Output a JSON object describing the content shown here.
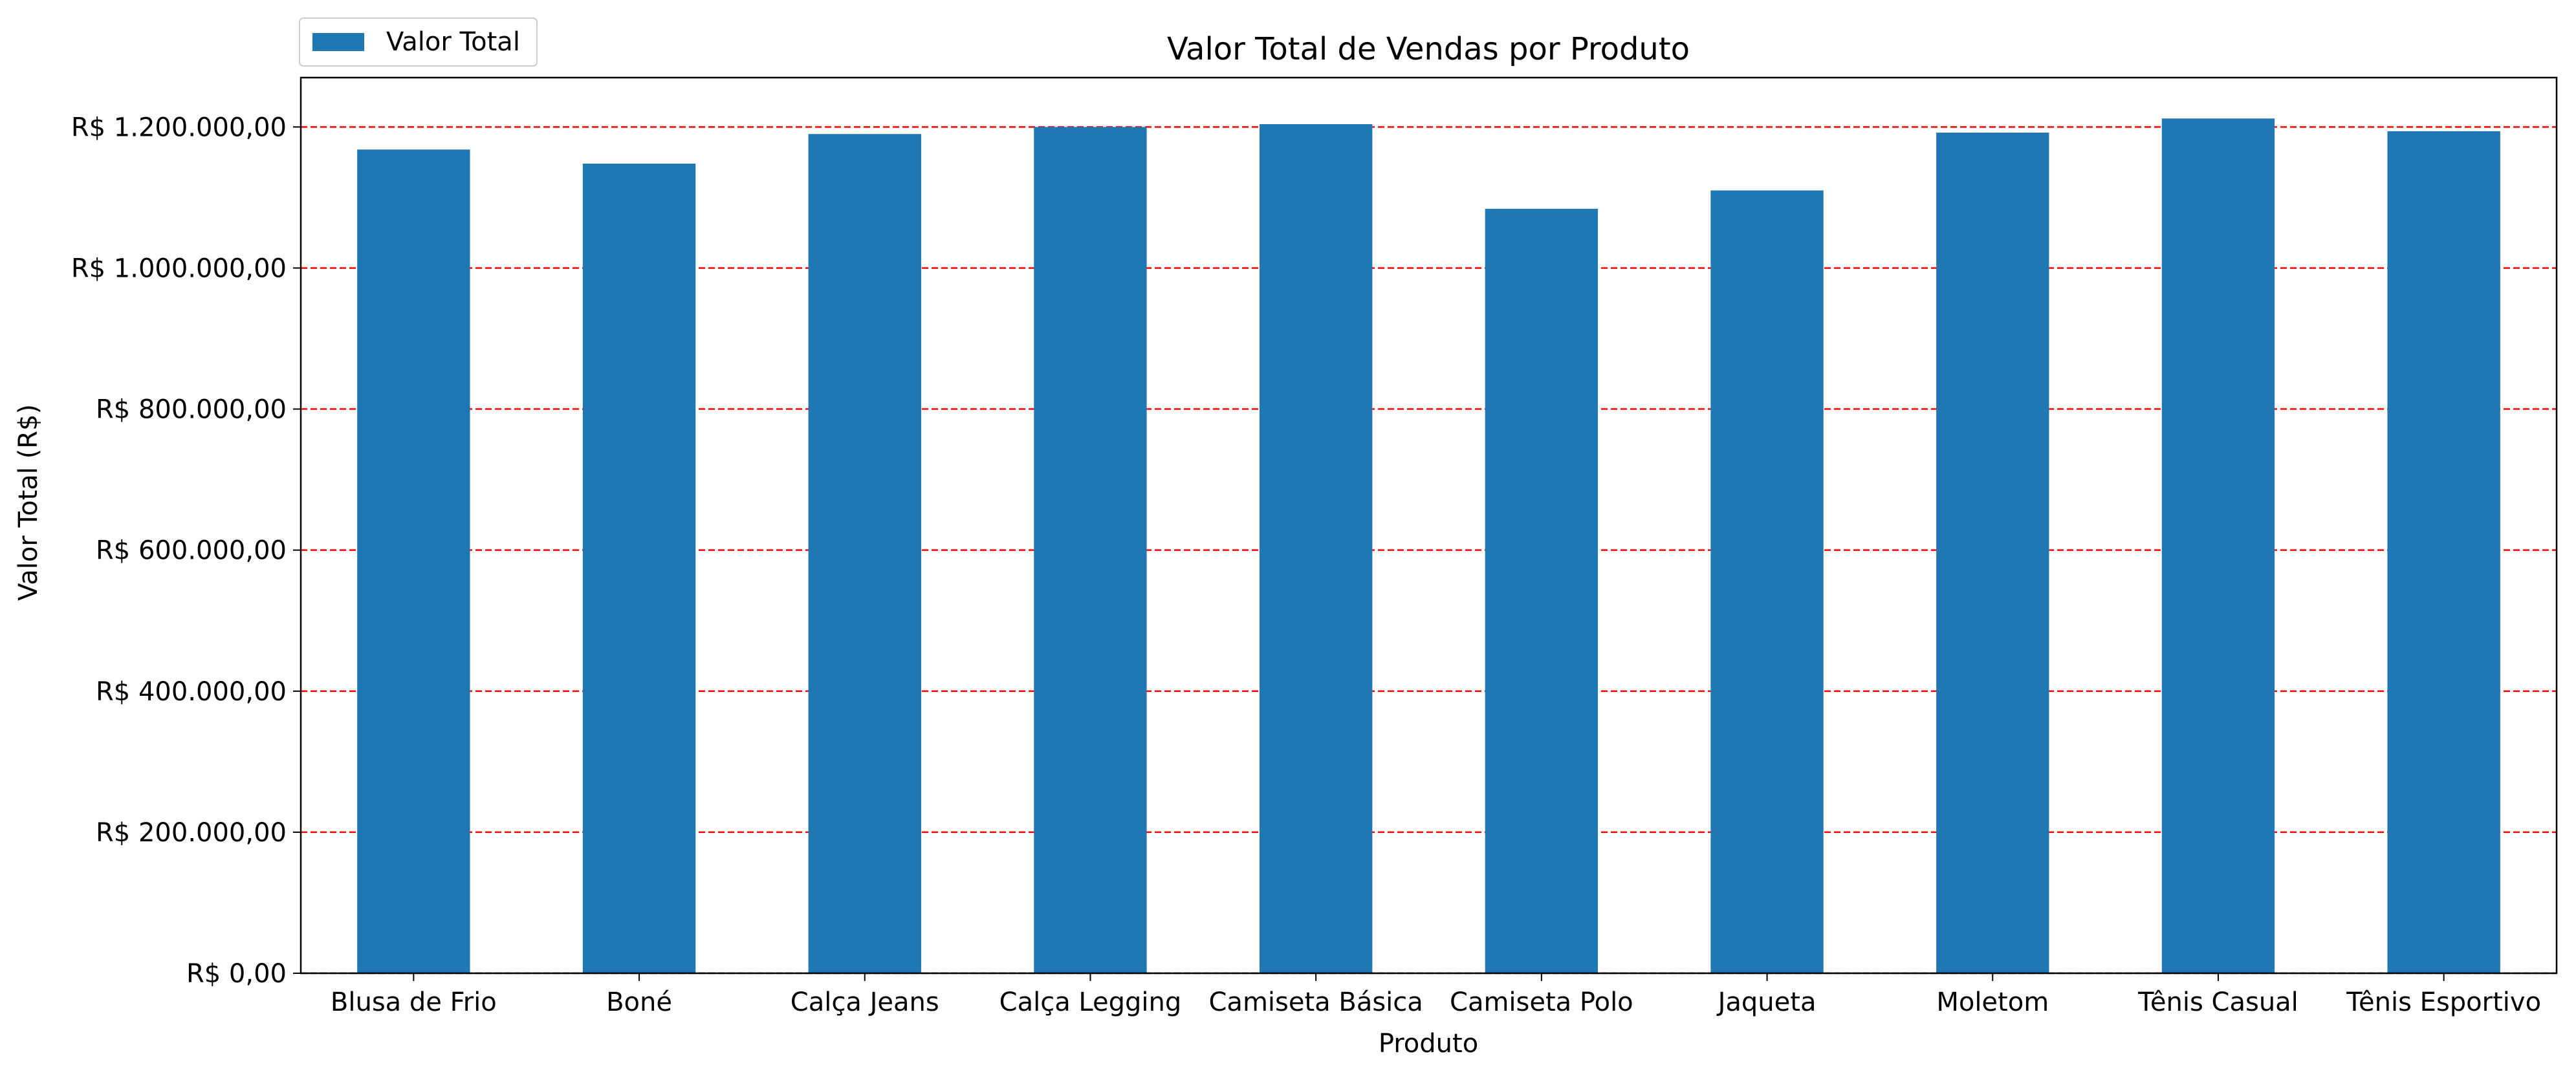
{
  "chart_data": {
    "type": "bar",
    "title": "Valor Total de Vendas por Produto",
    "xlabel": "Produto",
    "ylabel": "Valor Total (R$)",
    "categories": [
      "Blusa de Frio",
      "Boné",
      "Calça Jeans",
      "Calça Legging",
      "Camiseta Básica",
      "Camiseta Polo",
      "Jaqueta",
      "Moletom",
      "Tênis Casual",
      "Tênis Esportivo"
    ],
    "series": [
      {
        "name": "Valor Total",
        "color": "#1f77b4",
        "values": [
          1168000,
          1148000,
          1190000,
          1200000,
          1204000,
          1084000,
          1110000,
          1192000,
          1212000,
          1194000
        ]
      }
    ],
    "ylim": [
      0,
      1270000
    ],
    "yticks": [
      0,
      200000,
      400000,
      600000,
      800000,
      1000000,
      1200000
    ],
    "ytick_labels": [
      "R$ 0,00",
      "R$ 200.000,00",
      "R$ 400.000,00",
      "R$ 600.000,00",
      "R$ 800.000,00",
      "R$ 1.000.000,00",
      "R$ 1.200.000,00"
    ],
    "grid": {
      "axis": "y",
      "style": "dashed",
      "color": "#ff0000"
    },
    "legend": {
      "position": "top-left",
      "entries": [
        "Valor Total"
      ]
    }
  }
}
